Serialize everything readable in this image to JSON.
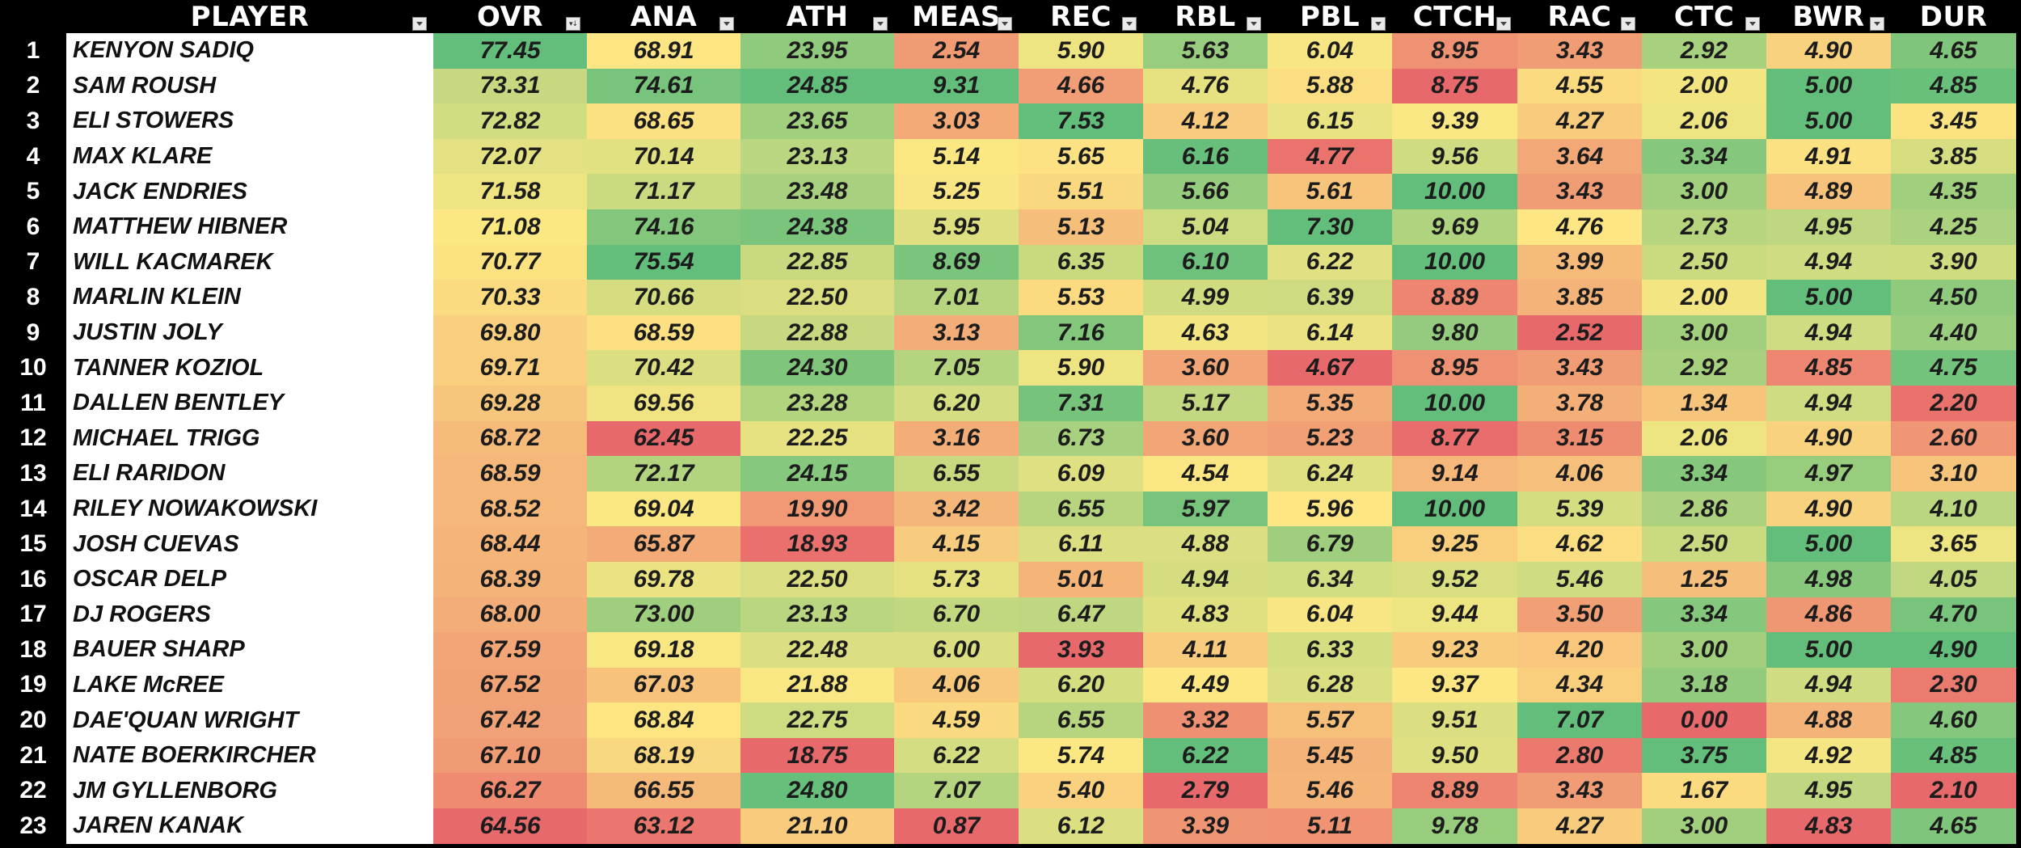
{
  "headers": {
    "rank": "",
    "player": "PLAYER",
    "ovr": "OVR",
    "ana": "ANA",
    "ath": "ATH",
    "meas": "MEAS",
    "rec": "REC",
    "rbl": "RBL",
    "pbl": "PBL",
    "ctch": "CTCH",
    "rac": "RAC",
    "ctc": "CTC",
    "bwr": "BWR",
    "dur": "DUR"
  },
  "sorted_column": "OVR",
  "columns": [
    "OVR",
    "ANA",
    "ATH",
    "MEAS",
    "REC",
    "RBL",
    "PBL",
    "CTCH",
    "RAC",
    "CTC",
    "BWR",
    "DUR"
  ],
  "rows": [
    {
      "rank": "1",
      "player": "KENYON SADIQ",
      "vals": [
        "77.45",
        "68.91",
        "23.95",
        "2.54",
        "5.90",
        "5.63",
        "6.04",
        "8.95",
        "3.43",
        "2.92",
        "4.90",
        "4.65"
      ]
    },
    {
      "rank": "2",
      "player": "SAM ROUSH",
      "vals": [
        "73.31",
        "74.61",
        "24.85",
        "9.31",
        "4.66",
        "4.76",
        "5.88",
        "8.75",
        "4.55",
        "2.00",
        "5.00",
        "4.85"
      ]
    },
    {
      "rank": "3",
      "player": "ELI STOWERS",
      "vals": [
        "72.82",
        "68.65",
        "23.65",
        "3.03",
        "7.53",
        "4.12",
        "6.15",
        "9.39",
        "4.27",
        "2.06",
        "5.00",
        "3.45"
      ]
    },
    {
      "rank": "4",
      "player": "MAX KLARE",
      "vals": [
        "72.07",
        "70.14",
        "23.13",
        "5.14",
        "5.65",
        "6.16",
        "4.77",
        "9.56",
        "3.64",
        "3.34",
        "4.91",
        "3.85"
      ]
    },
    {
      "rank": "5",
      "player": "JACK ENDRIES",
      "vals": [
        "71.58",
        "71.17",
        "23.48",
        "5.25",
        "5.51",
        "5.66",
        "5.61",
        "10.00",
        "3.43",
        "3.00",
        "4.89",
        "4.35"
      ]
    },
    {
      "rank": "6",
      "player": "MATTHEW HIBNER",
      "vals": [
        "71.08",
        "74.16",
        "24.38",
        "5.95",
        "5.13",
        "5.04",
        "7.30",
        "9.69",
        "4.76",
        "2.73",
        "4.95",
        "4.25"
      ]
    },
    {
      "rank": "7",
      "player": "WILL KACMAREK",
      "vals": [
        "70.77",
        "75.54",
        "22.85",
        "8.69",
        "6.35",
        "6.10",
        "6.22",
        "10.00",
        "3.99",
        "2.50",
        "4.94",
        "3.90"
      ]
    },
    {
      "rank": "8",
      "player": "MARLIN KLEIN",
      "vals": [
        "70.33",
        "70.66",
        "22.50",
        "7.01",
        "5.53",
        "4.99",
        "6.39",
        "8.89",
        "3.85",
        "2.00",
        "5.00",
        "4.50"
      ]
    },
    {
      "rank": "9",
      "player": "JUSTIN JOLY",
      "vals": [
        "69.80",
        "68.59",
        "22.88",
        "3.13",
        "7.16",
        "4.63",
        "6.14",
        "9.80",
        "2.52",
        "3.00",
        "4.94",
        "4.40"
      ]
    },
    {
      "rank": "10",
      "player": "TANNER KOZIOL",
      "vals": [
        "69.71",
        "70.42",
        "24.30",
        "7.05",
        "5.90",
        "3.60",
        "4.67",
        "8.95",
        "3.43",
        "2.92",
        "4.85",
        "4.75"
      ]
    },
    {
      "rank": "11",
      "player": "DALLEN BENTLEY",
      "vals": [
        "69.28",
        "69.56",
        "23.28",
        "6.20",
        "7.31",
        "5.17",
        "5.35",
        "10.00",
        "3.78",
        "1.34",
        "4.94",
        "2.20"
      ]
    },
    {
      "rank": "12",
      "player": "MICHAEL TRIGG",
      "vals": [
        "68.72",
        "62.45",
        "22.25",
        "3.16",
        "6.73",
        "3.60",
        "5.23",
        "8.77",
        "3.15",
        "2.06",
        "4.90",
        "2.60"
      ]
    },
    {
      "rank": "13",
      "player": "ELI RARIDON",
      "vals": [
        "68.59",
        "72.17",
        "24.15",
        "6.55",
        "6.09",
        "4.54",
        "6.24",
        "9.14",
        "4.06",
        "3.34",
        "4.97",
        "3.10"
      ]
    },
    {
      "rank": "14",
      "player": "RILEY NOWAKOWSKI",
      "vals": [
        "68.52",
        "69.04",
        "19.90",
        "3.42",
        "6.55",
        "5.97",
        "5.96",
        "10.00",
        "5.39",
        "2.86",
        "4.90",
        "4.10"
      ]
    },
    {
      "rank": "15",
      "player": "JOSH CUEVAS",
      "vals": [
        "68.44",
        "65.87",
        "18.93",
        "4.15",
        "6.11",
        "4.88",
        "6.79",
        "9.25",
        "4.62",
        "2.50",
        "5.00",
        "3.65"
      ]
    },
    {
      "rank": "16",
      "player": "OSCAR DELP",
      "vals": [
        "68.39",
        "69.78",
        "22.50",
        "5.73",
        "5.01",
        "4.94",
        "6.34",
        "9.52",
        "5.46",
        "1.25",
        "4.98",
        "4.05"
      ]
    },
    {
      "rank": "17",
      "player": "DJ ROGERS",
      "vals": [
        "68.00",
        "73.00",
        "23.13",
        "6.70",
        "6.47",
        "4.83",
        "6.04",
        "9.44",
        "3.50",
        "3.34",
        "4.86",
        "4.70"
      ]
    },
    {
      "rank": "18",
      "player": "BAUER SHARP",
      "vals": [
        "67.59",
        "69.18",
        "22.48",
        "6.00",
        "3.93",
        "4.11",
        "6.33",
        "9.23",
        "4.20",
        "3.00",
        "5.00",
        "4.90"
      ]
    },
    {
      "rank": "19",
      "player": "LAKE McREE",
      "vals": [
        "67.52",
        "67.03",
        "21.88",
        "4.06",
        "6.20",
        "4.49",
        "6.28",
        "9.37",
        "4.34",
        "3.18",
        "4.94",
        "2.30"
      ]
    },
    {
      "rank": "20",
      "player": "DAE'QUAN WRIGHT",
      "vals": [
        "67.42",
        "68.84",
        "22.75",
        "4.59",
        "6.55",
        "3.32",
        "5.57",
        "9.51",
        "7.07",
        "0.00",
        "4.88",
        "4.60"
      ]
    },
    {
      "rank": "21",
      "player": "NATE BOERKIRCHER",
      "vals": [
        "67.10",
        "68.19",
        "18.75",
        "6.22",
        "5.74",
        "6.22",
        "5.45",
        "9.50",
        "2.80",
        "3.75",
        "4.92",
        "4.85"
      ]
    },
    {
      "rank": "22",
      "player": "JM GYLLENBORG",
      "vals": [
        "66.27",
        "66.55",
        "24.80",
        "7.07",
        "5.40",
        "2.79",
        "5.46",
        "8.89",
        "3.43",
        "1.67",
        "4.95",
        "2.10"
      ]
    },
    {
      "rank": "23",
      "player": "JAREN KANAK",
      "vals": [
        "64.56",
        "63.12",
        "21.10",
        "0.87",
        "6.12",
        "3.39",
        "5.11",
        "9.78",
        "4.27",
        "3.00",
        "4.83",
        "4.65"
      ]
    }
  ],
  "colors": {
    "low": "#e8696b",
    "mid": "#fde883",
    "high": "#63be7b",
    "header_bg": "#000000",
    "header_text": "#ffffff",
    "name_bg": "#ffffff"
  }
}
